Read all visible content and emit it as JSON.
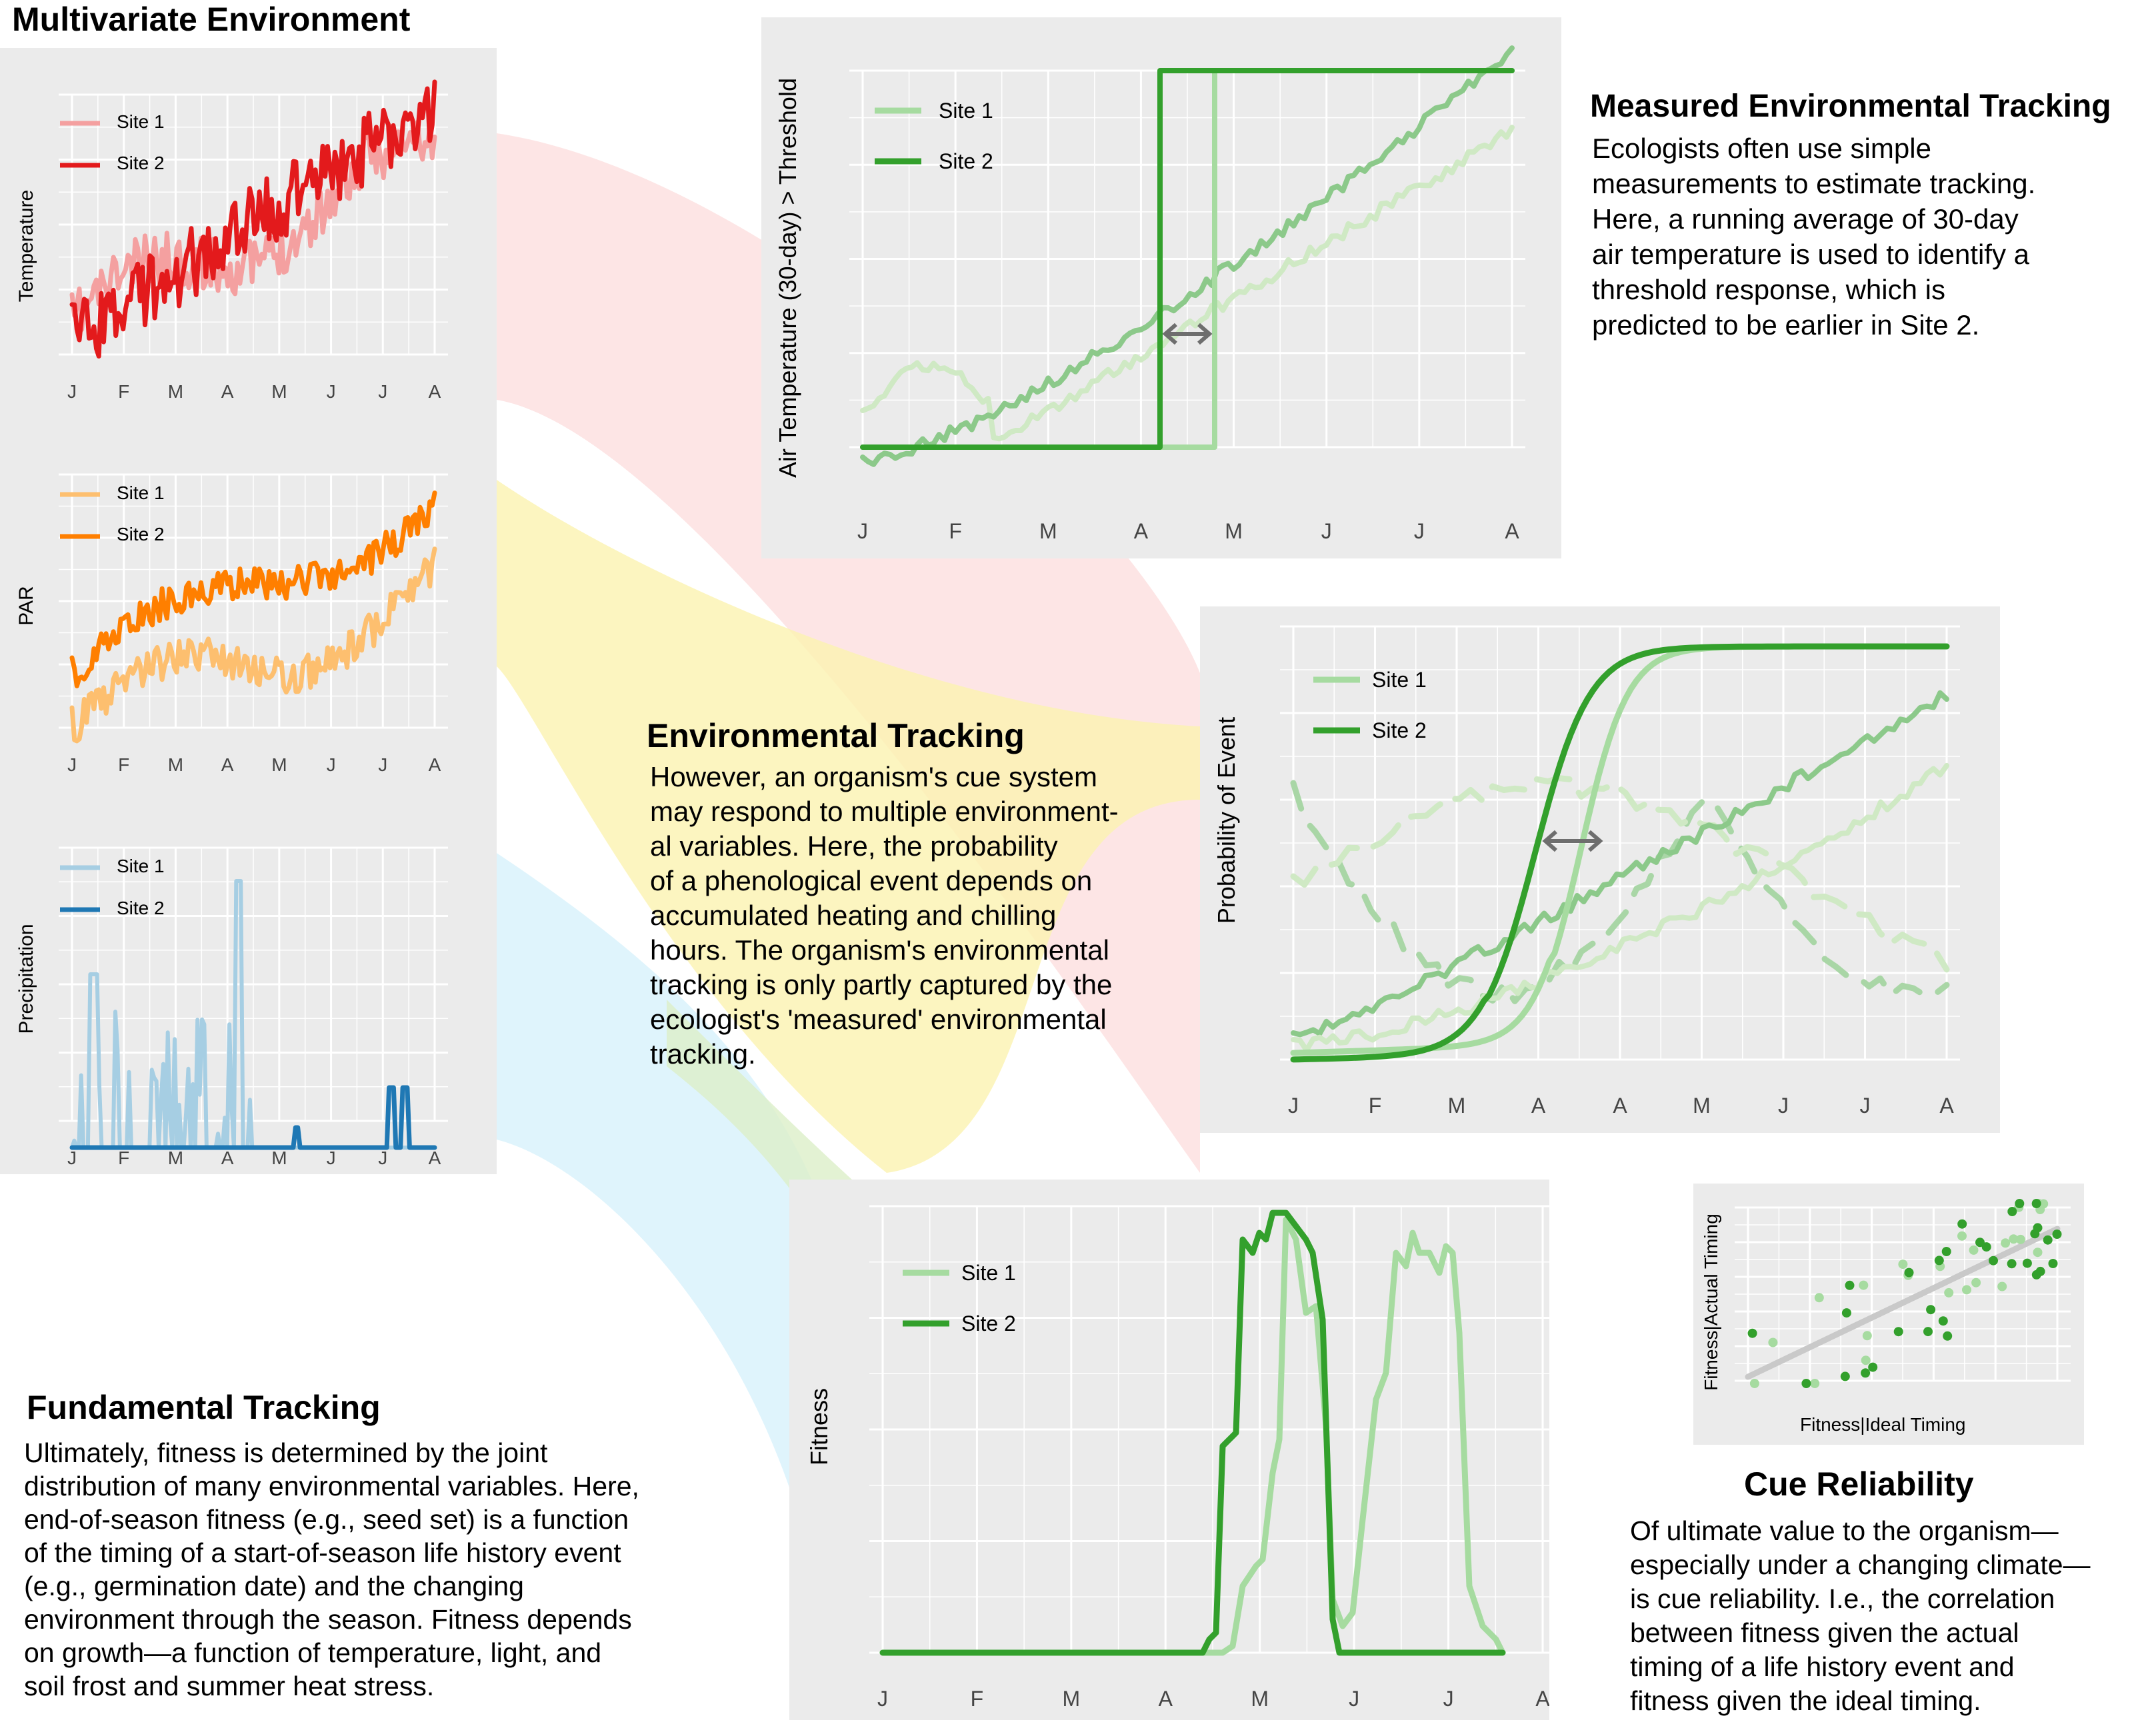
{
  "colors": {
    "temp_site1": "#f4a0a0",
    "temp_site2": "#e31a1c",
    "par_site1": "#fdbf6f",
    "par_site2": "#ff7f00",
    "precip_site1": "#a6cee3",
    "precip_site2": "#1f78b4",
    "green_site1": "#a6dba0",
    "green_site2": "#33a02c",
    "arrow": "#6e6e6e",
    "band_red": "#fde0e0",
    "band_yellow": "#fbf3b0",
    "band_blue": "#d9f2fb",
    "band_green": "#dcefc8"
  },
  "multivariate": {
    "title": "Multivariate Environment",
    "month_labels": [
      "J",
      "F",
      "M",
      "A",
      "M",
      "J",
      "J",
      "A"
    ],
    "temperature": {
      "ylabel": "Temperature",
      "legend": [
        "Site 1",
        "Site 2"
      ]
    },
    "par": {
      "ylabel": "PAR",
      "legend": [
        "Site 1",
        "Site 2"
      ]
    },
    "precipitation": {
      "ylabel": "Precipitation",
      "legend": [
        "Site 1",
        "Site 2"
      ]
    }
  },
  "measured": {
    "heading": "Measured Environmental Tracking",
    "body": "Ecologists often use simple\nmeasurements to estimate tracking.\nHere, a running average of 30-day\nair temperature is used to identify a\nthreshold response, which is\npredicted to be earlier in Site 2.",
    "ylabel": "Air Temperature (30-day) > Threshold",
    "legend": [
      "Site 1",
      "Site 2"
    ],
    "month_labels": [
      "J",
      "F",
      "M",
      "A",
      "M",
      "J",
      "J",
      "A"
    ]
  },
  "environmental": {
    "heading": "Environmental Tracking",
    "body": "However, an organism's cue system\nmay respond to multiple environment-\nal variables.  Here, the probability\nof a phenological event depends on\naccumulated heating and chilling\nhours. The organism's environmental\ntracking is only partly captured by the\necologist's 'measured' environmental\ntracking.",
    "ylabel": "Probability of Event",
    "legend": [
      "Site 1",
      "Site 2"
    ],
    "month_labels": [
      "J",
      "F",
      "M",
      "A",
      "A",
      "M",
      "J",
      "J",
      "A"
    ]
  },
  "fundamental": {
    "heading": "Fundamental Tracking",
    "body": "Ultimately, fitness is determined by the joint\ndistribution of many environmental variables.  Here,\nend-of-season fitness (e.g., seed set) is a function\nof the timing of a start-of-season life history event\n(e.g., germination date) and the changing\nenvironment through the season. Fitness depends\non growth—a function of temperature, light, and\nsoil frost and summer heat stress.",
    "ylabel": "Fitness",
    "legend": [
      "Site 1",
      "Site 2"
    ],
    "month_labels": [
      "J",
      "F",
      "M",
      "A",
      "M",
      "J",
      "J",
      "A"
    ]
  },
  "cue": {
    "heading": "Cue Reliability",
    "body": "Of ultimate value to the organism—\nespecially under a changing climate—\nis cue reliability.  I.e., the correlation\nbetween fitness given the actual\ntiming of a life history event and\nfitness given the ideal timing.",
    "xlabel": "Fitness|Ideal Timing",
    "ylabel": "Fitness|Actual Timing"
  }
}
